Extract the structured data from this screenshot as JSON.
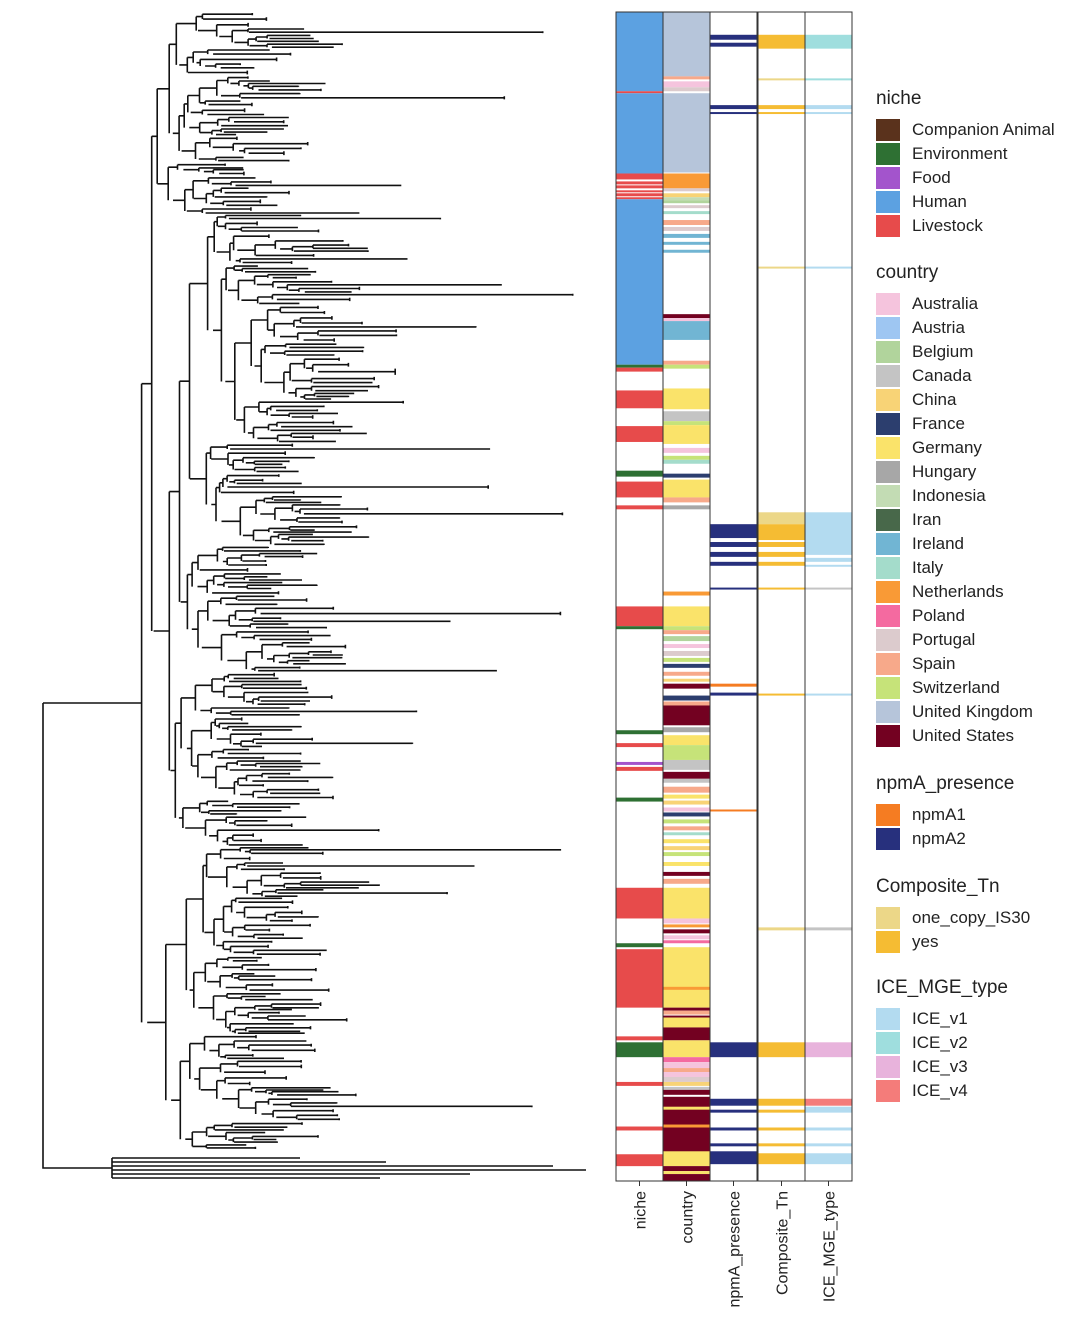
{
  "columns": [
    "niche",
    "country",
    "npmA_presence",
    "Composite_Tn",
    "ICE_MGE_type"
  ],
  "legends": [
    {
      "title": "niche",
      "items": [
        {
          "label": "Companion Animal",
          "color": "#5a321c"
        },
        {
          "label": "Environment",
          "color": "#2e7033"
        },
        {
          "label": "Food",
          "color": "#a354cc"
        },
        {
          "label": "Human",
          "color": "#5ca1e1"
        },
        {
          "label": "Livestock",
          "color": "#e74b4b"
        }
      ]
    },
    {
      "title": "country",
      "items": [
        {
          "label": "Australia",
          "color": "#f5c4dd"
        },
        {
          "label": "Austria",
          "color": "#9ec6f2"
        },
        {
          "label": "Belgium",
          "color": "#b1d49c"
        },
        {
          "label": "Canada",
          "color": "#c4c4c4"
        },
        {
          "label": "China",
          "color": "#f8d376"
        },
        {
          "label": "France",
          "color": "#2c3e6e"
        },
        {
          "label": "Germany",
          "color": "#fae36a"
        },
        {
          "label": "Hungary",
          "color": "#a7a7a7"
        },
        {
          "label": "Indonesia",
          "color": "#c3dcb4"
        },
        {
          "label": "Iran",
          "color": "#48684a"
        },
        {
          "label": "Ireland",
          "color": "#71b5d3"
        },
        {
          "label": "Italy",
          "color": "#a4dccb"
        },
        {
          "label": "Netherlands",
          "color": "#f99a36"
        },
        {
          "label": "Poland",
          "color": "#f46aa0"
        },
        {
          "label": "Portugal",
          "color": "#dccbcd"
        },
        {
          "label": "Spain",
          "color": "#f7a98a"
        },
        {
          "label": "Switzerland",
          "color": "#c6e379"
        },
        {
          "label": "United Kingdom",
          "color": "#b6c5da"
        },
        {
          "label": "United States",
          "color": "#730121"
        }
      ]
    },
    {
      "title": "npmA_presence",
      "items": [
        {
          "label": "npmA1",
          "color": "#f57c22"
        },
        {
          "label": "npmA2",
          "color": "#27307d"
        }
      ]
    },
    {
      "title": "Composite_Tn",
      "items": [
        {
          "label": "one_copy_IS30",
          "color": "#ecd788"
        },
        {
          "label": "yes",
          "color": "#f5bc33"
        }
      ]
    },
    {
      "title": "ICE_MGE_type",
      "items": [
        {
          "label": "ICE_v1",
          "color": "#b3dbf0"
        },
        {
          "label": "ICE_v2",
          "color": "#9fdede"
        },
        {
          "label": "ICE_v3",
          "color": "#e8b3dc"
        },
        {
          "label": "ICE_v4",
          "color": "#f47c7a"
        }
      ]
    }
  ],
  "heatmap": {
    "niche": [
      [
        "Human",
        0,
        80
      ],
      [
        "Livestock",
        80,
        82
      ],
      [
        "Human",
        82,
        163
      ],
      [
        "Livestock",
        163,
        169
      ],
      [
        "Livestock",
        171,
        174
      ],
      [
        "Livestock",
        175,
        178
      ],
      [
        "Livestock",
        180,
        182
      ],
      [
        "Livestock",
        183,
        186
      ],
      [
        "Livestock",
        187,
        189
      ],
      [
        "Human",
        189,
        356
      ],
      [
        "Environment",
        356,
        359
      ],
      [
        "Livestock",
        359,
        363
      ],
      [
        "Livestock",
        382,
        400
      ],
      [
        "Livestock",
        418,
        434
      ],
      [
        "Environment",
        463,
        469
      ],
      [
        "Livestock",
        474,
        490
      ],
      [
        "Livestock",
        498,
        502
      ],
      [
        "Livestock",
        600,
        620
      ],
      [
        "Environment",
        620,
        623
      ],
      [
        "Environment",
        725,
        729
      ],
      [
        "Livestock",
        738,
        742
      ],
      [
        "Food",
        757,
        760
      ],
      [
        "Livestock",
        762,
        766
      ],
      [
        "Environment",
        793,
        797
      ],
      [
        "Livestock",
        884,
        915
      ],
      [
        "Environment",
        940,
        944
      ],
      [
        "Livestock",
        946,
        1005
      ],
      [
        "Livestock",
        1034,
        1038
      ],
      [
        "Environment",
        1040,
        1055
      ],
      [
        "Livestock",
        1080,
        1084
      ],
      [
        "Livestock",
        1125,
        1129
      ],
      [
        "Livestock",
        1153,
        1165
      ]
    ],
    "country": [
      [
        "United Kingdom",
        0,
        65
      ],
      [
        "Spain",
        65,
        68
      ],
      [
        "Australia",
        70,
        76
      ],
      [
        "Portugal",
        76,
        80
      ],
      [
        "United Kingdom",
        82,
        162
      ],
      [
        "Netherlands",
        163,
        178
      ],
      [
        "Portugal",
        178,
        181
      ],
      [
        "China",
        183,
        187
      ],
      [
        "Indonesia",
        187,
        190
      ],
      [
        "Belgium",
        190,
        193
      ],
      [
        "Portugal",
        195,
        198
      ],
      [
        "Italy",
        201,
        204
      ],
      [
        "Spain",
        210,
        215
      ],
      [
        "Portugal",
        217,
        221
      ],
      [
        "Ireland",
        224,
        228
      ],
      [
        "Ireland",
        232,
        235
      ],
      [
        "Ireland",
        240,
        243
      ],
      [
        "United States",
        305,
        309
      ],
      [
        "Australia",
        309,
        312
      ],
      [
        "Ireland",
        312,
        331
      ],
      [
        "Spain",
        352,
        356
      ],
      [
        "Switzerland",
        356,
        360
      ],
      [
        "Germany",
        380,
        401
      ],
      [
        "Canada",
        403,
        413
      ],
      [
        "Switzerland",
        413,
        417
      ],
      [
        "Germany",
        417,
        436
      ],
      [
        "Australia",
        440,
        445
      ],
      [
        "Switzerland",
        448,
        452
      ],
      [
        "Italy",
        452,
        456
      ],
      [
        "France",
        466,
        470
      ],
      [
        "Germany",
        472,
        490
      ],
      [
        "Spain",
        490,
        495
      ],
      [
        "Hungary",
        498,
        502
      ],
      [
        "Netherlands",
        585,
        589
      ],
      [
        "Germany",
        600,
        620
      ],
      [
        "Switzerland",
        620,
        624
      ],
      [
        "Spain",
        624,
        628
      ],
      [
        "Belgium",
        630,
        635
      ],
      [
        "Australia",
        638,
        642
      ],
      [
        "Portugal",
        645,
        650
      ],
      [
        "Switzerland",
        652,
        656
      ],
      [
        "France",
        658,
        662
      ],
      [
        "Spain",
        666,
        670
      ],
      [
        "China",
        673,
        676
      ],
      [
        "United States",
        678,
        683
      ],
      [
        "France",
        690,
        695
      ],
      [
        "Spain",
        696,
        700
      ],
      [
        "United States",
        700,
        720
      ],
      [
        "Hungary",
        722,
        727
      ],
      [
        "Germany",
        730,
        740
      ],
      [
        "Switzerland",
        740,
        755
      ],
      [
        "Canada",
        755,
        765
      ],
      [
        "United States",
        767,
        774
      ],
      [
        "Canada",
        774,
        778
      ],
      [
        "Spain",
        782,
        788
      ],
      [
        "Germany",
        790,
        794
      ],
      [
        "China",
        796,
        800
      ],
      [
        "Australia",
        803,
        807
      ],
      [
        "France",
        808,
        812
      ],
      [
        "Switzerland",
        815,
        819
      ],
      [
        "Spain",
        822,
        826
      ],
      [
        "Italy",
        828,
        831
      ],
      [
        "Germany",
        835,
        839
      ],
      [
        "China",
        842,
        846
      ],
      [
        "Switzerland",
        848,
        852
      ],
      [
        "Germany",
        858,
        862
      ],
      [
        "United States",
        868,
        872
      ],
      [
        "Spain",
        875,
        880
      ],
      [
        "Germany",
        884,
        915
      ],
      [
        "Australia",
        915,
        920
      ],
      [
        "Netherlands",
        921,
        924
      ],
      [
        "United States",
        926,
        930
      ],
      [
        "Australia",
        932,
        936
      ],
      [
        "Poland",
        937,
        940
      ],
      [
        "Germany",
        944,
        1005
      ],
      [
        "Netherlands",
        984,
        987
      ],
      [
        "United States",
        1005,
        1008
      ],
      [
        "Spain",
        1008,
        1012
      ],
      [
        "United States",
        1013,
        1015
      ],
      [
        "Germany",
        1015,
        1025
      ],
      [
        "United States",
        1025,
        1038
      ],
      [
        "Germany",
        1038,
        1055
      ],
      [
        "Poland",
        1055,
        1060
      ],
      [
        "Australia",
        1060,
        1066
      ],
      [
        "Spain",
        1066,
        1070
      ],
      [
        "Australia",
        1070,
        1075
      ],
      [
        "Portugal",
        1075,
        1080
      ],
      [
        "China",
        1080,
        1084
      ],
      [
        "Canada",
        1085,
        1088
      ],
      [
        "United States",
        1088,
        1093
      ],
      [
        "United States",
        1095,
        1165
      ],
      [
        "Germany",
        1105,
        1108
      ],
      [
        "Netherlands",
        1123,
        1126
      ],
      [
        "Germany",
        1150,
        1165
      ],
      [
        "United States",
        1165,
        1170
      ],
      [
        "Germany",
        1170,
        1173
      ],
      [
        "United States",
        1173,
        1180
      ]
    ],
    "npmA_presence": [
      [
        "npmA2",
        23,
        28
      ],
      [
        "npmA2",
        31,
        35
      ],
      [
        "npmA2",
        94,
        98
      ],
      [
        "npmA2",
        101,
        103
      ],
      [
        "npmA2",
        517,
        531
      ],
      [
        "npmA2",
        535,
        540
      ],
      [
        "npmA2",
        545,
        550
      ],
      [
        "npmA2",
        555,
        559
      ],
      [
        "npmA2",
        581,
        583
      ],
      [
        "npmA1",
        678,
        681
      ],
      [
        "npmA2",
        687,
        690
      ],
      [
        "npmA1",
        805,
        807
      ],
      [
        "npmA2",
        1040,
        1055
      ],
      [
        "npmA2",
        1097,
        1104
      ],
      [
        "npmA2",
        1108,
        1111
      ],
      [
        "npmA2",
        1126,
        1129
      ],
      [
        "npmA2",
        1142,
        1145
      ],
      [
        "npmA2",
        1150,
        1163
      ]
    ],
    "Composite_Tn": [
      [
        "yes",
        23,
        37
      ],
      [
        "one_copy_IS30",
        67,
        69
      ],
      [
        "yes",
        94,
        98
      ],
      [
        "yes",
        101,
        103
      ],
      [
        "one_copy_IS30",
        257,
        259
      ],
      [
        "one_copy_IS30",
        505,
        517
      ],
      [
        "yes",
        517,
        533
      ],
      [
        "yes",
        535,
        540
      ],
      [
        "yes",
        545,
        550
      ],
      [
        "yes",
        555,
        559
      ],
      [
        "yes",
        581,
        583
      ],
      [
        "yes",
        688,
        690
      ],
      [
        "one_copy_IS30",
        924,
        927
      ],
      [
        "yes",
        1040,
        1055
      ],
      [
        "yes",
        1097,
        1104
      ],
      [
        "yes",
        1108,
        1111
      ],
      [
        "yes",
        1126,
        1129
      ],
      [
        "yes",
        1142,
        1145
      ],
      [
        "yes",
        1152,
        1163
      ]
    ],
    "ICE_MGE_type": [
      [
        "ICE_v2",
        23,
        37
      ],
      [
        "ICE_v2",
        67,
        69
      ],
      [
        "ICE_v1",
        94,
        98
      ],
      [
        "ICE_v1",
        101,
        103
      ],
      [
        "ICE_v1",
        257,
        259
      ],
      [
        "ICE_v1",
        505,
        548
      ],
      [
        "ICE_v1",
        551,
        555
      ],
      [
        "ICE_v1",
        558,
        560
      ],
      [
        "Canada",
        581,
        583
      ],
      [
        "ICE_v1",
        688,
        690
      ],
      [
        "Canada",
        924,
        927
      ],
      [
        "ICE_v3",
        1040,
        1055
      ],
      [
        "ICE_v4",
        1097,
        1104
      ],
      [
        "ICE_v1",
        1105,
        1111
      ],
      [
        "ICE_v1",
        1126,
        1129
      ],
      [
        "ICE_v1",
        1142,
        1145
      ],
      [
        "ICE_v1",
        1152,
        1163
      ]
    ]
  }
}
